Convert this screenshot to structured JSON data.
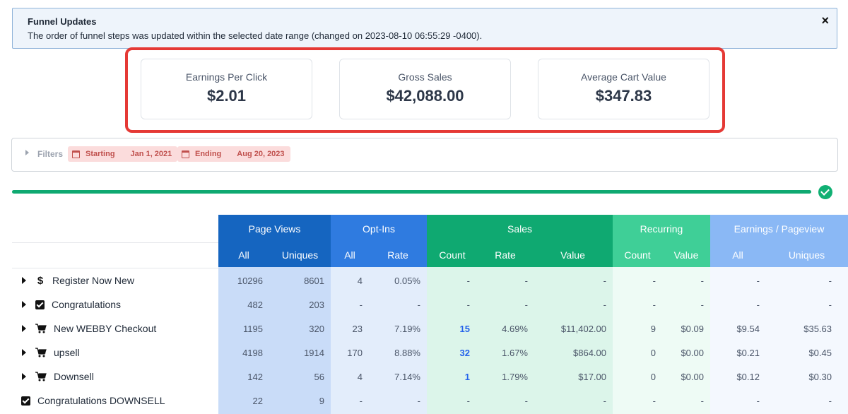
{
  "alert": {
    "title": "Funnel Updates",
    "message": "The order of funnel steps was updated within the selected date range (changed on 2023-08-10 06:55:29 -0400).",
    "close": "×"
  },
  "stats": [
    {
      "label": "Earnings Per Click",
      "value": "$2.01"
    },
    {
      "label": "Gross Sales",
      "value": "$42,088.00"
    },
    {
      "label": "Average Cart Value",
      "value": "$347.83"
    }
  ],
  "filters": {
    "label": "Filters",
    "starting_label": "Starting",
    "starting_date": "Jan 1, 2021",
    "ending_label": "Ending",
    "ending_date": "Aug 20, 2023"
  },
  "progress": {
    "value": 100
  },
  "table": {
    "groups": [
      "Page Views",
      "Opt-Ins",
      "Sales",
      "Recurring",
      "Earnings / Pageview"
    ],
    "subheaders": [
      "All",
      "Uniques",
      "All",
      "Rate",
      "Count",
      "Rate",
      "Value",
      "Count",
      "Value",
      "All",
      "Uniques"
    ],
    "rows": [
      {
        "name": "Register Now New",
        "icon": "dollar-icon",
        "expand": true,
        "cells": [
          "10296",
          "8601",
          "4",
          "0.05%",
          "-",
          "-",
          "-",
          "-",
          "-",
          "-",
          "-"
        ]
      },
      {
        "name": "Congratulations",
        "icon": "checkbox-icon",
        "expand": true,
        "cells": [
          "482",
          "203",
          "-",
          "-",
          "-",
          "-",
          "-",
          "-",
          "-",
          "-",
          "-"
        ]
      },
      {
        "name": "New WEBBY Checkout",
        "icon": "cart-icon",
        "expand": true,
        "cells": [
          "1195",
          "320",
          "23",
          "7.19%",
          "15",
          "4.69%",
          "$11,402.00",
          "9",
          "$0.09",
          "$9.54",
          "$35.63"
        ]
      },
      {
        "name": "upsell",
        "icon": "cart-icon",
        "expand": true,
        "cells": [
          "4198",
          "1914",
          "170",
          "8.88%",
          "32",
          "1.67%",
          "$864.00",
          "0",
          "$0.00",
          "$0.21",
          "$0.45"
        ]
      },
      {
        "name": "Downsell",
        "icon": "cart-icon",
        "expand": true,
        "cells": [
          "142",
          "56",
          "4",
          "7.14%",
          "1",
          "1.79%",
          "$17.00",
          "0",
          "$0.00",
          "$0.12",
          "$0.30"
        ]
      },
      {
        "name": "Congratulations DOWNSELL",
        "icon": "checkbox-icon",
        "expand": false,
        "cells": [
          "22",
          "9",
          "-",
          "-",
          "-",
          "-",
          "-",
          "-",
          "-",
          "-",
          "-"
        ]
      }
    ]
  },
  "help_button": {
    "label": "(",
    "icon": "help-icon"
  },
  "colors": {
    "page_views": "#1565c0",
    "opt_ins": "#2f7be0",
    "sales": "#0fa971",
    "recurring": "#3fcf97",
    "earnings": "#8ab8f5",
    "highlight": "#e53935"
  }
}
